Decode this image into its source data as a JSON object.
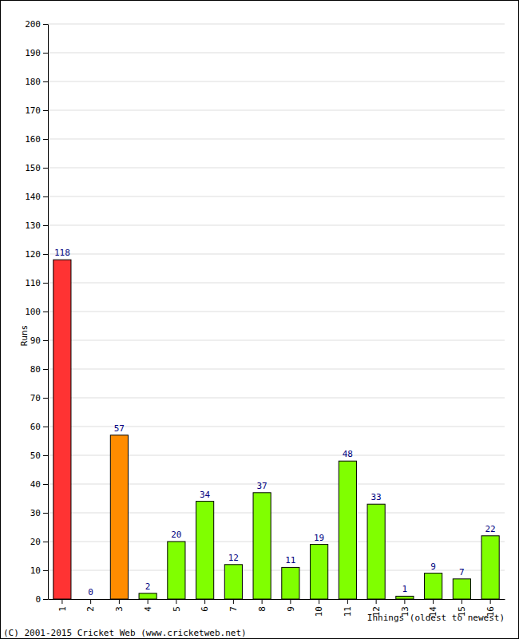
{
  "chart_data": {
    "type": "bar",
    "x_label": "Innings (oldest to newest)",
    "y_label": "Runs",
    "annotations": [
      "(C) 2001-2015 Cricket Web (www.cricketweb.net)"
    ],
    "categories": [
      "1",
      "2",
      "3",
      "4",
      "5",
      "6",
      "7",
      "8",
      "9",
      "10",
      "11",
      "12",
      "13",
      "14",
      "15",
      "16"
    ],
    "values": [
      118,
      0,
      57,
      2,
      20,
      34,
      12,
      37,
      11,
      19,
      48,
      33,
      1,
      9,
      7,
      22
    ],
    "colors": [
      "#ff3333",
      "#80ff00",
      "#ff8c00",
      "#80ff00",
      "#80ff00",
      "#80ff00",
      "#80ff00",
      "#80ff00",
      "#80ff00",
      "#80ff00",
      "#80ff00",
      "#80ff00",
      "#80ff00",
      "#80ff00",
      "#80ff00",
      "#80ff00"
    ],
    "ylim": [
      0,
      200
    ],
    "yticks": [
      0,
      10,
      20,
      30,
      40,
      50,
      60,
      70,
      80,
      90,
      100,
      110,
      120,
      130,
      140,
      150,
      160,
      170,
      180,
      190,
      200
    ],
    "grid": true,
    "data_labels": true
  }
}
